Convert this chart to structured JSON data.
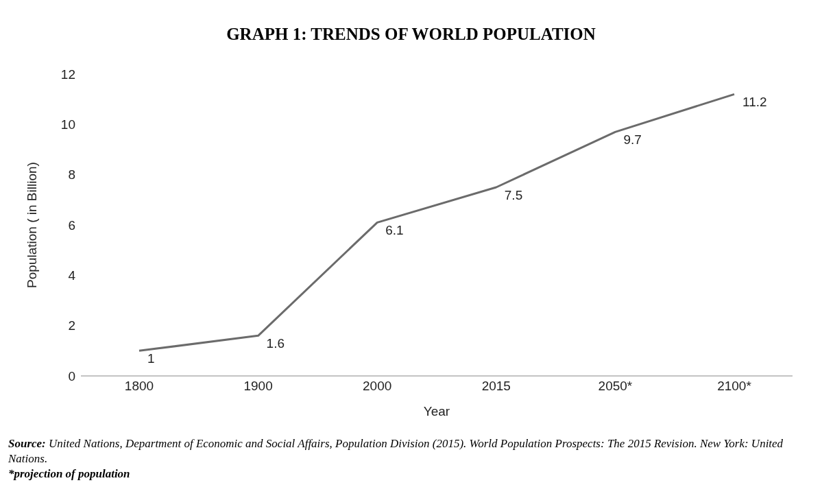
{
  "chart_data": {
    "type": "line",
    "title": "GRAPH 1: TRENDS OF WORLD POPULATION",
    "xlabel": "Year",
    "ylabel": "Population ( in Billion)",
    "categories": [
      "1800",
      "1900",
      "2000",
      "2015",
      "2050*",
      "2100*"
    ],
    "series": [
      {
        "color": "#6b6b6b",
        "values": [
          1,
          1.6,
          6.1,
          7.5,
          9.7,
          11.2
        ]
      }
    ],
    "ylim": [
      0,
      12
    ],
    "yticks": [
      0,
      2,
      4,
      6,
      8,
      10,
      12
    ],
    "data_labels": true,
    "annotations": [
      "Source: United Nations, Department of Economic and Social Affairs, Population Division (2015). World Population Prospects: The 2015 Revision. New York: United Nations.",
      "*projection of population"
    ]
  }
}
